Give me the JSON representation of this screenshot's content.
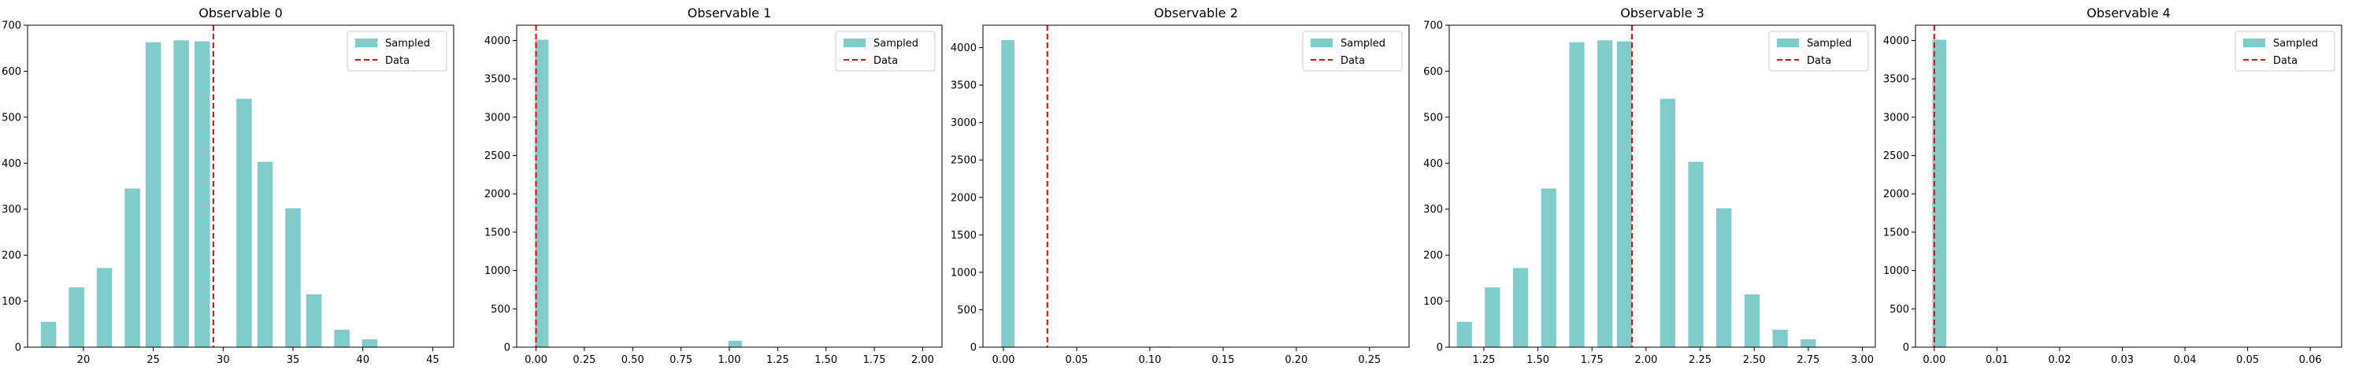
{
  "chart_data": [
    {
      "type": "bar",
      "title": "Observable 0",
      "xlim": [
        16,
        46.5
      ],
      "ylim": [
        0,
        700
      ],
      "xticks": [
        "20",
        "25",
        "30",
        "35",
        "40",
        "45"
      ],
      "yticks": [
        "0",
        "100",
        "200",
        "300",
        "400",
        "500",
        "600",
        "700"
      ],
      "bar_width": 1.1,
      "series": [
        {
          "name": "Sampled",
          "color": "#7fcdcb",
          "x": [
            17.5,
            19.5,
            21.5,
            23.5,
            25,
            27,
            28.5,
            31.5,
            33,
            35,
            36.5,
            38.5,
            40.5
          ],
          "values": [
            55,
            130,
            172,
            345,
            663,
            667,
            665,
            540,
            403,
            302,
            115,
            38,
            17
          ]
        },
        {
          "name": "Data",
          "color": "#ff0000",
          "style": "dashed",
          "x": [
            29.3
          ]
        }
      ],
      "legend": "top-right"
    },
    {
      "type": "bar",
      "title": "Observable 1",
      "xlim": [
        -0.1,
        2.1
      ],
      "ylim": [
        0,
        4200
      ],
      "xticks": [
        "0.00",
        "0.25",
        "0.50",
        "0.75",
        "1.00",
        "1.25",
        "1.50",
        "1.75",
        "2.00"
      ],
      "yticks": [
        "0",
        "500",
        "1000",
        "1500",
        "2000",
        "2500",
        "3000",
        "3500",
        "4000"
      ],
      "bar_width": 0.07,
      "series": [
        {
          "name": "Sampled",
          "color": "#7fcdcb",
          "x": [
            0.03,
            1.03
          ],
          "values": [
            4010,
            85
          ]
        },
        {
          "name": "Data",
          "color": "#ff0000",
          "style": "dashed",
          "x": [
            0.0
          ]
        }
      ],
      "legend": "top-right"
    },
    {
      "type": "bar",
      "title": "Observable 2",
      "xlim": [
        -0.014,
        0.277
      ],
      "ylim": [
        0,
        4300
      ],
      "xticks": [
        "0.00",
        "0.05",
        "0.10",
        "0.15",
        "0.20",
        "0.25"
      ],
      "yticks": [
        "0",
        "500",
        "1000",
        "1500",
        "2000",
        "2500",
        "3000",
        "3500",
        "4000"
      ],
      "bar_width": 0.009,
      "series": [
        {
          "name": "Sampled",
          "color": "#7fcdcb",
          "x": [
            0.003,
            0.109
          ],
          "values": [
            4100,
            8
          ]
        },
        {
          "name": "Data",
          "color": "#ff0000",
          "style": "dashed",
          "x": [
            0.03
          ]
        }
      ],
      "legend": "top-right"
    },
    {
      "type": "bar",
      "title": "Observable 3",
      "xlim": [
        1.09,
        3.06
      ],
      "ylim": [
        0,
        700
      ],
      "xticks": [
        "1.25",
        "1.50",
        "1.75",
        "2.00",
        "2.25",
        "2.50",
        "2.75",
        "3.00"
      ],
      "yticks": [
        "0",
        "100",
        "200",
        "300",
        "400",
        "500",
        "600",
        "700"
      ],
      "bar_width": 0.07,
      "series": [
        {
          "name": "Sampled",
          "color": "#7fcdcb",
          "x": [
            1.16,
            1.29,
            1.42,
            1.55,
            1.68,
            1.81,
            1.9,
            2.1,
            2.23,
            2.36,
            2.49,
            2.62,
            2.75
          ],
          "values": [
            55,
            130,
            172,
            345,
            663,
            667,
            665,
            540,
            403,
            302,
            115,
            38,
            17
          ]
        },
        {
          "name": "Data",
          "color": "#ff0000",
          "style": "dashed",
          "x": [
            1.935
          ]
        }
      ],
      "legend": "top-right"
    },
    {
      "type": "bar",
      "title": "Observable 4",
      "xlim": [
        -0.003,
        0.065
      ],
      "ylim": [
        0,
        4200
      ],
      "xticks": [
        "0.00",
        "0.01",
        "0.02",
        "0.03",
        "0.04",
        "0.05",
        "0.06"
      ],
      "yticks": [
        "0",
        "500",
        "1000",
        "1500",
        "2000",
        "2500",
        "3000",
        "3500",
        "4000"
      ],
      "bar_width": 0.0022,
      "series": [
        {
          "name": "Sampled",
          "color": "#7fcdcb",
          "x": [
            0.0008,
            0.0308
          ],
          "values": [
            4010,
            6
          ]
        },
        {
          "name": "Data",
          "color": "#ff0000",
          "style": "dashed",
          "x": [
            0.0
          ]
        }
      ],
      "legend": "top-right"
    }
  ]
}
